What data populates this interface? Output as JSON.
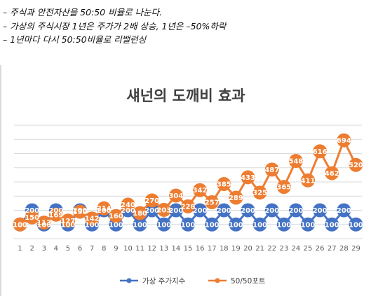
{
  "notes": [
    "– 주식과 안전자산을 50:50 비율로 나눈다.",
    "– 가상의 주식시장 1년은 주가가 2배 상승, 1년은 –50%하락",
    "– 1년마다 다시 50:50비율로 리밸런싱"
  ],
  "colors": {
    "series_a": "#4472c4",
    "series_b": "#ed7d31",
    "grid": "#d9d9d9"
  },
  "chart_data": {
    "type": "line",
    "title": "섀넌의 도깨비 효과",
    "xlabel": "",
    "ylabel": "",
    "x": [
      1,
      2,
      3,
      4,
      5,
      6,
      7,
      8,
      9,
      10,
      11,
      12,
      13,
      14,
      15,
      16,
      17,
      18,
      19,
      20,
      21,
      22,
      23,
      24,
      25,
      26,
      27,
      28,
      29
    ],
    "ylim": [
      0,
      800
    ],
    "grid": true,
    "legend": "bottom",
    "markers": true,
    "data_labels": true,
    "series": [
      {
        "name": "가상 주가지수",
        "color": "#4472c4",
        "values": [
          100,
          200,
          100,
          200,
          100,
          200,
          100,
          200,
          100,
          200,
          100,
          200,
          100,
          200,
          100,
          200,
          100,
          200,
          100,
          200,
          100,
          200,
          100,
          200,
          100,
          200,
          100,
          200,
          100
        ]
      },
      {
        "name": "50/50포트",
        "color": "#ed7d31",
        "values": [
          100,
          150,
          113,
          169,
          127,
          190,
          142,
          214,
          160,
          240,
          180,
          270,
          203,
          304,
          228,
          342,
          257,
          385,
          289,
          433,
          325,
          487,
          365,
          548,
          411,
          616,
          462,
          694,
          520
        ]
      }
    ]
  }
}
